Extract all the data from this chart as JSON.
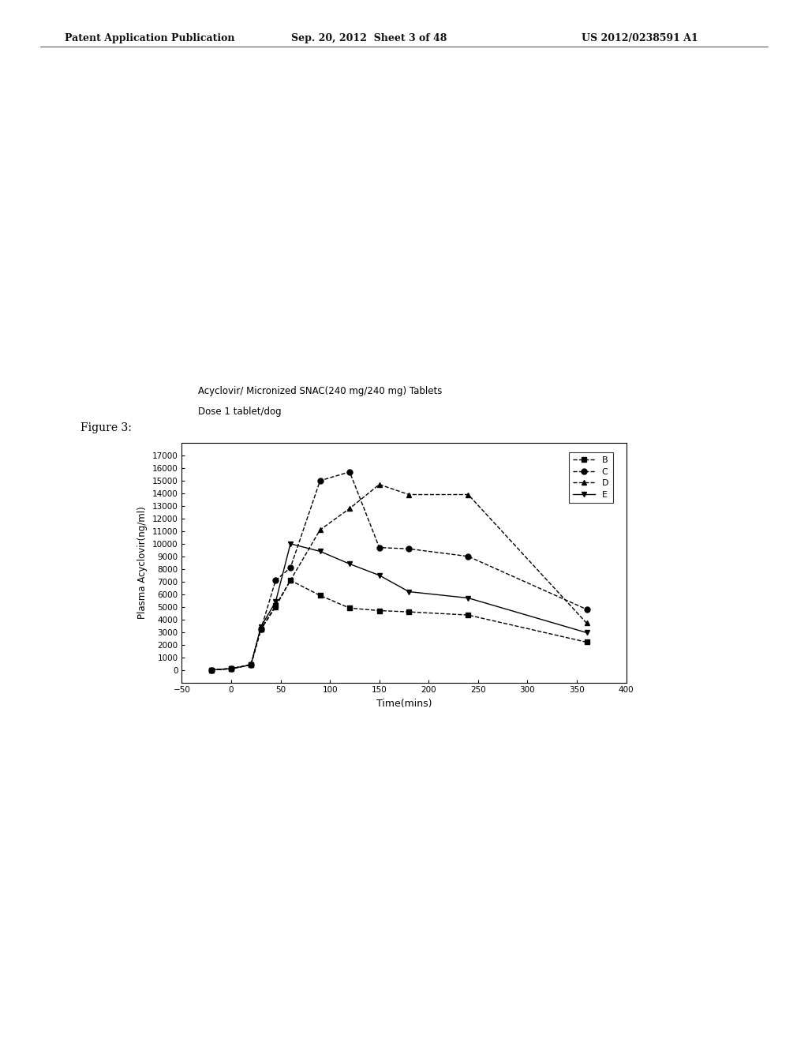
{
  "title_line1": "Acyclovir/ Micronized SNAC(240 mg/240 mg) Tablets",
  "title_line2": "Dose 1 tablet/dog",
  "xlabel": "Time(mins)",
  "ylabel": "Plasma Acyclovir(ng/ml)",
  "header_left": "Patent Application Publication",
  "header_center": "Sep. 20, 2012  Sheet 3 of 48",
  "header_right": "US 2012/0238591 A1",
  "figure_label": "Figure 3:",
  "series": [
    {
      "label": "B",
      "time": [
        -20,
        0,
        20,
        30,
        45,
        60,
        90,
        120,
        150,
        180,
        240,
        360
      ],
      "values": [
        0,
        100,
        400,
        3200,
        5100,
        7100,
        5900,
        4900,
        4700,
        4600,
        4350,
        2200
      ],
      "marker": "s",
      "linestyle": "--",
      "color": "#000000"
    },
    {
      "label": "C",
      "time": [
        -20,
        0,
        20,
        30,
        45,
        60,
        90,
        120,
        150,
        180,
        240,
        360
      ],
      "values": [
        0,
        100,
        400,
        3200,
        7100,
        8100,
        15000,
        15700,
        9700,
        9600,
        9000,
        4800
      ],
      "marker": "o",
      "linestyle": "--",
      "color": "#000000"
    },
    {
      "label": "D",
      "time": [
        -20,
        0,
        20,
        30,
        45,
        60,
        90,
        120,
        150,
        180,
        240,
        360
      ],
      "values": [
        0,
        100,
        400,
        3200,
        5000,
        7100,
        11100,
        12800,
        14700,
        13900,
        13900,
        3700
      ],
      "marker": "^",
      "linestyle": "--",
      "color": "#000000"
    },
    {
      "label": "E",
      "time": [
        -20,
        0,
        20,
        30,
        45,
        60,
        90,
        120,
        150,
        180,
        240,
        360
      ],
      "values": [
        0,
        100,
        400,
        3400,
        5400,
        10000,
        9400,
        8400,
        7500,
        6200,
        5700,
        2950
      ],
      "marker": "v",
      "linestyle": "-",
      "color": "#000000"
    }
  ],
  "xlim": [
    -50,
    400
  ],
  "ylim": [
    -1000,
    18000
  ],
  "yticks": [
    0,
    1000,
    2000,
    3000,
    4000,
    5000,
    6000,
    7000,
    8000,
    9000,
    10000,
    11000,
    12000,
    13000,
    14000,
    15000,
    16000,
    17000
  ],
  "xticks": [
    -50,
    0,
    50,
    100,
    150,
    200,
    250,
    300,
    350,
    400
  ],
  "background_color": "#ffffff",
  "chart_bg": "#ffffff"
}
